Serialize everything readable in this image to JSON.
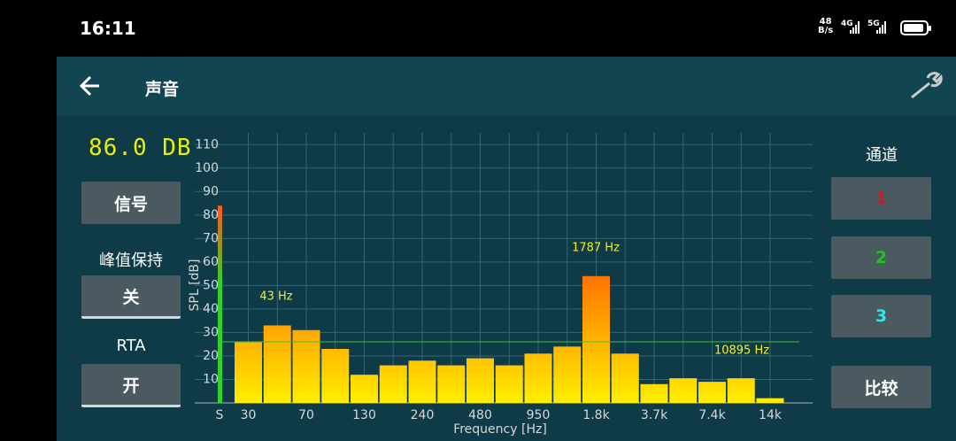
{
  "status_bar": {
    "time": "16:11",
    "net_speed": "48",
    "net_unit": "B/s",
    "sim1": "4G",
    "sim2": "5G"
  },
  "header": {
    "title": "声音"
  },
  "left_panel": {
    "level": "86.0 DB",
    "signal_button": "信号",
    "peak_hold_label": "峰值保持",
    "peak_hold_button": "关",
    "rta_label": "RTA",
    "rta_button": "开"
  },
  "right_panel": {
    "channel_label": "通道",
    "channels": [
      {
        "label": "1",
        "color": "#c8201e"
      },
      {
        "label": "2",
        "color": "#1fc21f"
      },
      {
        "label": "3",
        "color": "#2ee8e8"
      }
    ],
    "compare_button": "比较"
  },
  "chart_data": {
    "type": "bar",
    "ylabel": "SPL [dB]",
    "xlabel": "Frequency [Hz]",
    "categories": [
      "30",
      null,
      "70",
      null,
      "130",
      null,
      "240",
      null,
      "480",
      null,
      "950",
      null,
      "1.8k",
      null,
      "3.7k",
      null,
      "7.4k",
      null,
      "14k"
    ],
    "values": [
      26,
      33,
      31,
      23,
      12,
      16,
      18,
      16,
      19,
      16,
      21,
      24,
      54,
      21,
      8,
      10.5,
      9,
      10.5,
      2
    ],
    "bar_colors": [
      "#ffee00",
      "#ff6a00"
    ],
    "signal": {
      "label": "S",
      "value": 84,
      "colors": [
        "#2fd12f",
        "#ff5a1a"
      ]
    },
    "threshold": {
      "value": 26,
      "color": "#3fbf3f"
    },
    "annotations": [
      "43 Hz",
      "1787 Hz",
      "10895 Hz"
    ],
    "ylim": [
      0,
      115
    ],
    "yticks": [
      10,
      20,
      30,
      40,
      50,
      60,
      70,
      80,
      90,
      100,
      110
    ],
    "grid": true
  }
}
